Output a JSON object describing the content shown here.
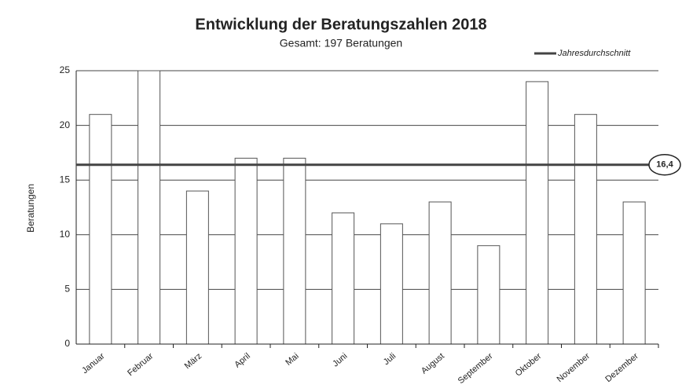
{
  "chart_data": {
    "type": "bar",
    "title": "Entwicklung der Beratungszahlen 2018",
    "subtitle": "Gesamt: 197 Beratungen",
    "y_label": "Beratungen",
    "categories": [
      "Januar",
      "Februar",
      "März",
      "April",
      "Mai",
      "Juni",
      "Juli",
      "August",
      "September",
      "Oktober",
      "November",
      "Dezember"
    ],
    "values": [
      21,
      25,
      14,
      17,
      17,
      12,
      11,
      13,
      9,
      24,
      21,
      13
    ],
    "color": "#ffffff",
    "average": {
      "name": "Jahresdurchschnitt",
      "value": 16.4,
      "label": "16,4",
      "color": "#444444"
    },
    "ylim": [
      0,
      25
    ],
    "yticks": [
      0,
      5,
      10,
      15,
      20,
      25
    ],
    "grid": true
  }
}
